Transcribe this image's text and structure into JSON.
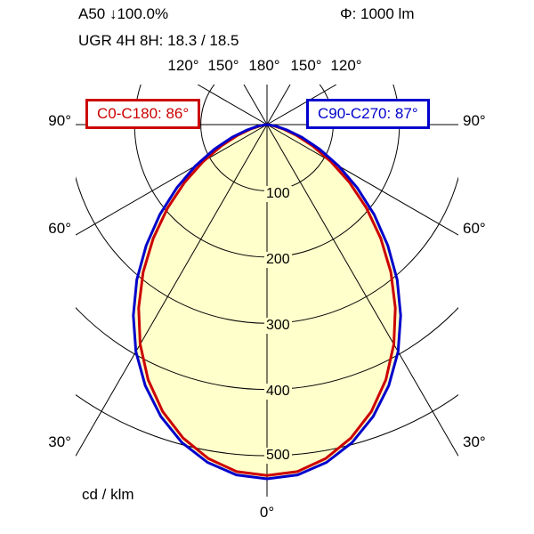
{
  "header": {
    "flux_fraction": "A50 ↓100.0%",
    "luminous_flux": "Φ: 1000 lm",
    "ugr": "UGR 4H 8H: 18.3 / 18.5"
  },
  "legend": {
    "c0": {
      "label": "C0-C180: 86°"
    },
    "c90": {
      "label": "C90-C270: 87°"
    }
  },
  "axis": {
    "top_labels": [
      "120°",
      "150°",
      "180°",
      "150°",
      "120°"
    ],
    "side_labels": [
      "90°",
      "60°",
      "30°"
    ],
    "bottom_label": "0°",
    "ring_labels": [
      "100",
      "200",
      "300",
      "400",
      "500"
    ],
    "unit_label": "cd / klm"
  },
  "chart_data": {
    "type": "polar-photometric",
    "title": "Luminous intensity distribution curve",
    "unit": "cd/klm",
    "flux": "1000 lm",
    "rings": [
      100,
      200,
      300,
      400,
      500
    ],
    "radial_angles_deg": [
      0,
      30,
      60,
      90,
      120,
      150,
      180
    ],
    "angles_deg": [
      0,
      5,
      10,
      15,
      20,
      25,
      30,
      35,
      40,
      45,
      50,
      55,
      60,
      65,
      70,
      75,
      80,
      85,
      90
    ],
    "fill_color": "#ffffcc",
    "series": [
      {
        "name": "C0-C180",
        "beam_angle_deg": 86,
        "color": "#cc0000",
        "values": [
          530,
          526,
          512,
          490,
          461,
          425,
          383,
          338,
          291,
          243,
          196,
          152,
          111,
          76,
          47,
          25,
          10,
          2,
          0
        ]
      },
      {
        "name": "C90-C270",
        "beam_angle_deg": 87,
        "color": "#0000cc",
        "values": [
          535,
          531,
          518,
          497,
          469,
          435,
          396,
          352,
          306,
          258,
          211,
          166,
          125,
          88,
          56,
          31,
          14,
          3,
          0
        ]
      }
    ]
  }
}
